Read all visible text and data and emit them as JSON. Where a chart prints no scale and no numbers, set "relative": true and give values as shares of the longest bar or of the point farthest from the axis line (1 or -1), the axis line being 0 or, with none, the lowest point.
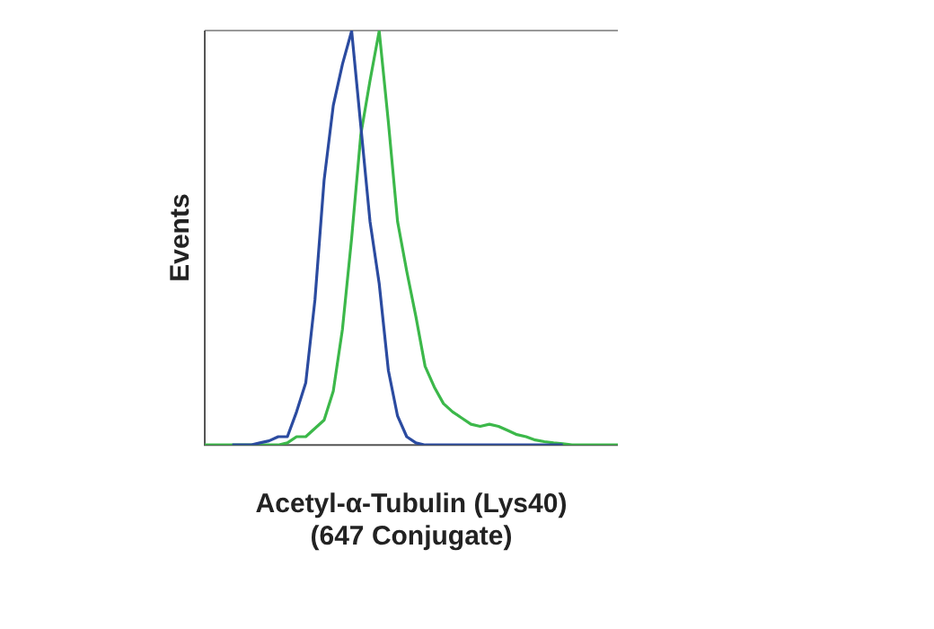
{
  "chart_data": {
    "type": "line",
    "relative": true,
    "xlabel": "Acetyl-α-Tubulin (Lys40)\n(647 Conjugate)",
    "ylabel": "Events",
    "grid": false,
    "legend": false,
    "marker": "none",
    "line_style": "solid",
    "categories": [
      null,
      null,
      null,
      null,
      null,
      null,
      null,
      null,
      null,
      null,
      null,
      null,
      null,
      null,
      null,
      null,
      null,
      null,
      null,
      null,
      null,
      null,
      null,
      null,
      null,
      null,
      null,
      null,
      null,
      null,
      null,
      null,
      null,
      null,
      null,
      null,
      null,
      null,
      null,
      null,
      null,
      null,
      null,
      null,
      null,
      null
    ],
    "series": [
      {
        "color": "#2b4ba0",
        "values": [
          null,
          null,
          null,
          0,
          0,
          0,
          0.005,
          0.01,
          0.02,
          0.02,
          0.08,
          0.15,
          0.35,
          0.64,
          0.82,
          0.92,
          1,
          0.77,
          0.54,
          0.39,
          0.18,
          0.07,
          0.02,
          0.005,
          0,
          0,
          0,
          0,
          0,
          0,
          0,
          0,
          0,
          0,
          0,
          0,
          0,
          0,
          0,
          0,
          null,
          null,
          null,
          null,
          null,
          null
        ]
      },
      {
        "color": "#3cb84a",
        "values": [
          0,
          0,
          0,
          0,
          0,
          0,
          0,
          0,
          0,
          0.005,
          0.02,
          0.02,
          0.04,
          0.06,
          0.13,
          0.28,
          0.5,
          0.75,
          0.88,
          1,
          0.78,
          0.54,
          0.42,
          0.31,
          0.19,
          0.14,
          0.1,
          0.08,
          0.065,
          0.05,
          0.045,
          0.05,
          0.045,
          0.035,
          0.025,
          0.02,
          0.012,
          0.008,
          0.005,
          0.003,
          0,
          0,
          0,
          0,
          0,
          0
        ]
      }
    ]
  }
}
